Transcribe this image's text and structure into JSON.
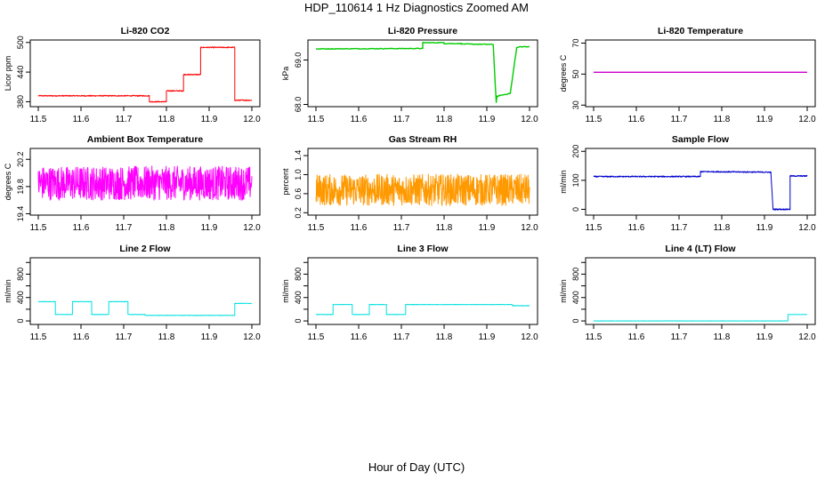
{
  "figure": {
    "title": "HDP_110614  1 Hz Diagnostics Zoomed AM",
    "xlabel": "Hour of Day (UTC)"
  },
  "chart_data": [
    {
      "type": "line",
      "title": "Li-820 CO2",
      "ylabel": "Licor ppm",
      "color": "#ff0000",
      "xlim": [
        11.5,
        12.0
      ],
      "ylim": [
        370,
        505
      ],
      "xticks": [
        "11.5",
        "11.6",
        "11.7",
        "11.8",
        "11.9",
        "12.0"
      ],
      "yticks": [
        380,
        440,
        500
      ],
      "ytick_labels": [
        "380",
        "440",
        "500"
      ],
      "noise": 1.0,
      "series": [
        {
          "name": "CO2",
          "x": [
            11.5,
            11.76,
            11.76,
            11.8,
            11.8,
            11.84,
            11.84,
            11.88,
            11.88,
            11.96,
            11.96,
            12.0
          ],
          "y": [
            392,
            392,
            380,
            380,
            402,
            402,
            435,
            435,
            490,
            490,
            383,
            383
          ]
        }
      ]
    },
    {
      "type": "line",
      "title": "Li-820 Pressure",
      "ylabel": "kPa",
      "color": "#00cc00",
      "xlim": [
        11.5,
        12.0
      ],
      "ylim": [
        67.95,
        69.45
      ],
      "xticks": [
        "11.5",
        "11.6",
        "11.7",
        "11.8",
        "11.9",
        "12.0"
      ],
      "yticks": [
        68.0,
        69.0
      ],
      "ytick_labels": [
        "68.0",
        "69.0"
      ],
      "noise": 0.008,
      "series": [
        {
          "name": "Pressure",
          "x": [
            11.5,
            11.75,
            11.75,
            11.8,
            11.8,
            11.84,
            11.84,
            11.915,
            11.922,
            11.924,
            11.93,
            11.955,
            11.97,
            11.98,
            12.0
          ],
          "y": [
            69.25,
            69.26,
            69.39,
            69.39,
            69.37,
            69.37,
            69.36,
            69.35,
            68.05,
            68.18,
            68.2,
            68.25,
            69.28,
            69.3,
            69.3
          ]
        }
      ]
    },
    {
      "type": "line",
      "title": "Li-820 Temperature",
      "ylabel": "degrees C",
      "color": "#cc00cc",
      "xlim": [
        11.5,
        12.0
      ],
      "ylim": [
        29,
        72
      ],
      "xticks": [
        "11.5",
        "11.6",
        "11.7",
        "11.8",
        "11.9",
        "12.0"
      ],
      "yticks": [
        30,
        50,
        70
      ],
      "ytick_labels": [
        "30",
        "50",
        "70"
      ],
      "noise": 0.0,
      "series": [
        {
          "name": "Temperature",
          "x": [
            11.5,
            12.0
          ],
          "y": [
            51.2,
            51.2
          ]
        }
      ]
    },
    {
      "type": "line",
      "title": "Ambient Box Temperature",
      "ylabel": "degrees C",
      "color": "#ff00ff",
      "xlim": [
        11.5,
        12.0
      ],
      "ylim": [
        19.38,
        20.36
      ],
      "xticks": [
        "11.5",
        "11.6",
        "11.7",
        "11.8",
        "11.9",
        "12.0"
      ],
      "yticks": [
        19.4,
        19.8,
        20.2
      ],
      "ytick_labels": [
        "19.4",
        "19.8",
        "20.2"
      ],
      "noise": 0.25,
      "series": [
        {
          "name": "Ambient",
          "x": [
            11.5,
            12.0
          ],
          "y": [
            19.85,
            19.85
          ]
        }
      ]
    },
    {
      "type": "line",
      "title": "Gas Stream RH",
      "ylabel": "percent",
      "color": "#ff9900",
      "xlim": [
        11.5,
        12.0
      ],
      "ylim": [
        0.15,
        1.55
      ],
      "xticks": [
        "11.5",
        "11.6",
        "11.7",
        "11.8",
        "11.9",
        "12.0"
      ],
      "yticks": [
        0.2,
        0.6,
        1.0,
        1.4
      ],
      "ytick_labels": [
        "0.2",
        "0.6",
        "1.0",
        "1.4"
      ],
      "noise": 0.33,
      "series": [
        {
          "name": "RH",
          "x": [
            11.5,
            12.0
          ],
          "y": [
            0.68,
            0.68
          ]
        }
      ]
    },
    {
      "type": "line",
      "title": "Sample Flow",
      "ylabel": "ml/min",
      "color": "#0000cc",
      "xlim": [
        11.5,
        12.0
      ],
      "ylim": [
        -20,
        210
      ],
      "xticks": [
        "11.5",
        "11.6",
        "11.7",
        "11.8",
        "11.9",
        "12.0"
      ],
      "yticks": [
        0,
        100,
        200
      ],
      "ytick_labels": [
        "0",
        "100",
        "200"
      ],
      "noise": 2.0,
      "series": [
        {
          "name": "Sample",
          "x": [
            11.5,
            11.75,
            11.75,
            11.915,
            11.92,
            11.955,
            11.96,
            11.96,
            12.0
          ],
          "y": [
            113,
            113,
            130,
            128,
            0,
            0,
            0,
            115,
            115
          ]
        }
      ]
    },
    {
      "type": "line",
      "title": "Line 2 Flow",
      "ylabel": "ml/min",
      "color": "#00e0e0",
      "xlim": [
        11.5,
        12.0
      ],
      "ylim": [
        -60,
        1080
      ],
      "xticks": [
        "11.5",
        "11.6",
        "11.7",
        "11.8",
        "11.9",
        "12.0"
      ],
      "yticks": [
        0,
        200,
        400,
        600,
        800,
        1000
      ],
      "ytick_labels": [
        "0",
        "400",
        "800"
      ],
      "noise": 4.0,
      "series": [
        {
          "name": "Line 2",
          "x": [
            11.5,
            11.54,
            11.54,
            11.58,
            11.58,
            11.625,
            11.625,
            11.665,
            11.665,
            11.71,
            11.71,
            11.75,
            11.75,
            11.96,
            11.96,
            12.0
          ],
          "y": [
            330,
            330,
            110,
            110,
            330,
            330,
            110,
            110,
            330,
            330,
            110,
            110,
            95,
            95,
            300,
            300
          ]
        }
      ]
    },
    {
      "type": "line",
      "title": "Line 3 Flow",
      "ylabel": "ml/min",
      "color": "#00e0e0",
      "xlim": [
        11.5,
        12.0
      ],
      "ylim": [
        -60,
        1080
      ],
      "xticks": [
        "11.5",
        "11.6",
        "11.7",
        "11.8",
        "11.9",
        "12.0"
      ],
      "yticks": [
        0,
        200,
        400,
        600,
        800,
        1000
      ],
      "ytick_labels": [
        "0",
        "400",
        "800"
      ],
      "noise": 4.0,
      "series": [
        {
          "name": "Line 3",
          "x": [
            11.5,
            11.54,
            11.54,
            11.585,
            11.585,
            11.625,
            11.625,
            11.665,
            11.665,
            11.71,
            11.71,
            11.96,
            11.96,
            12.0
          ],
          "y": [
            110,
            110,
            280,
            280,
            110,
            110,
            280,
            280,
            110,
            110,
            280,
            280,
            260,
            260
          ]
        }
      ]
    },
    {
      "type": "line",
      "title": "Line 4 (LT) Flow",
      "ylabel": "ml/min",
      "color": "#00e0e0",
      "xlim": [
        11.5,
        12.0
      ],
      "ylim": [
        -60,
        1080
      ],
      "xticks": [
        "11.5",
        "11.6",
        "11.7",
        "11.8",
        "11.9",
        "12.0"
      ],
      "yticks": [
        0,
        200,
        400,
        600,
        800,
        1000
      ],
      "ytick_labels": [
        "0",
        "400",
        "800"
      ],
      "noise": 2.0,
      "series": [
        {
          "name": "Line 4",
          "x": [
            11.5,
            11.955,
            11.955,
            12.0
          ],
          "y": [
            0,
            0,
            110,
            110
          ]
        }
      ]
    }
  ]
}
